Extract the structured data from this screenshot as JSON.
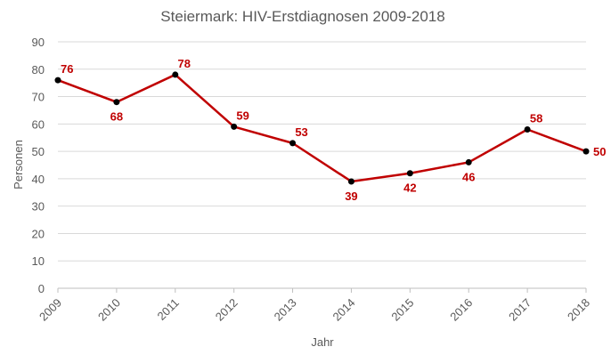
{
  "chart_data": {
    "type": "line",
    "title": "Steiermark: HIV-Erstdiagnosen 2009-2018",
    "xlabel": "Jahr",
    "ylabel": "Personen",
    "categories": [
      "2009",
      "2010",
      "2011",
      "2012",
      "2013",
      "2014",
      "2015",
      "2016",
      "2017",
      "2018"
    ],
    "series": [
      {
        "values": [
          76,
          68,
          78,
          59,
          53,
          39,
          42,
          46,
          58,
          50
        ]
      }
    ],
    "ylim": [
      0,
      90
    ],
    "yticks": [
      0,
      10,
      20,
      30,
      40,
      50,
      60,
      70,
      80,
      90
    ],
    "grid": true,
    "legend": "none",
    "data_labels": true,
    "colors": {
      "line": "#c00000",
      "marker": "#000000",
      "label": "#c00000"
    }
  }
}
